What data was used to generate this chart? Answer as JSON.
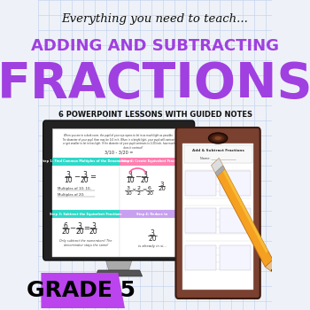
{
  "bg_color": "#eef2f8",
  "grid_color": "#c5d5ee",
  "title_script": "Everything you need to teach...",
  "title_main1": "ADDING AND SUBTRACTING",
  "title_main2": "FRACTIONS",
  "subtitle": "6 POWERPOINT LESSONS WITH GUIDED NOTES",
  "purple": "#a040e0",
  "black": "#111111",
  "gray_dark": "#222222",
  "grade_label": "GRADE 5",
  "grade_bg": "#bb44ee",
  "step1_color": "#30d8c8",
  "step2_color": "#ff80b0",
  "step3_color": "#30d8c8",
  "step4_color": "#c8a0f0",
  "monitor_dark": "#222222",
  "monitor_mid": "#555555",
  "monitor_light": "#aaaaaa",
  "screen_bg": "#ffffff",
  "clipboard_brown": "#7a4030",
  "clipboard_dark": "#3a1a10",
  "paper_white": "#ffffff",
  "pencil_orange": "#f5a020",
  "pencil_yellow": "#f5d040",
  "pencil_dark": "#c07010",
  "pencil_gray": "#666666",
  "pencil_tip": "#444444"
}
